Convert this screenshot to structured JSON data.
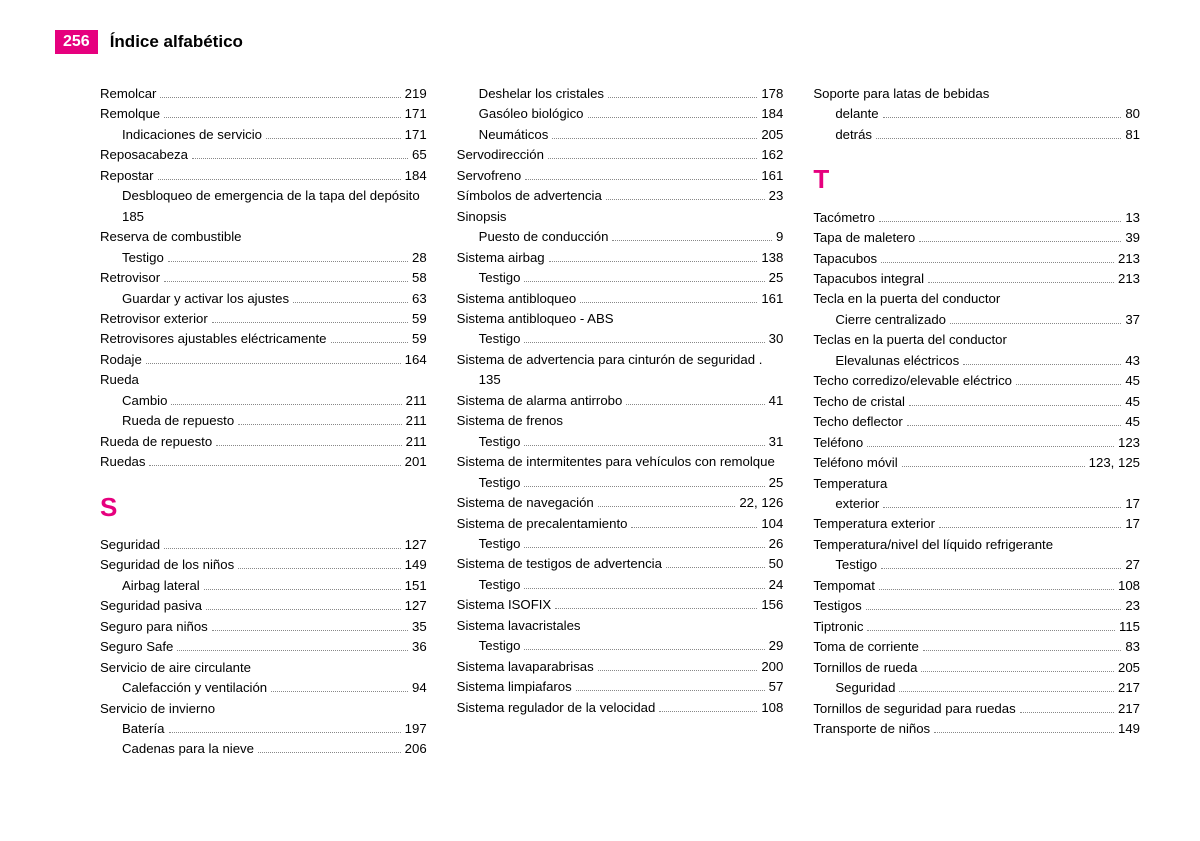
{
  "header": {
    "page_number": "256",
    "title": "Índice alfabético"
  },
  "accent_color": "#e6007e",
  "columns": [
    {
      "items": [
        {
          "t": "entry",
          "label": "Remolcar",
          "page": "219"
        },
        {
          "t": "entry",
          "label": "Remolque",
          "page": "171"
        },
        {
          "t": "sub",
          "label": "Indicaciones de servicio",
          "page": "171"
        },
        {
          "t": "entry",
          "label": "Reposacabeza",
          "page": "65"
        },
        {
          "t": "entry",
          "label": "Repostar",
          "page": "184"
        },
        {
          "t": "subtext",
          "label": "Desbloqueo de emergencia de la tapa del depósito 185"
        },
        {
          "t": "heading",
          "label": "Reserva de combustible"
        },
        {
          "t": "sub",
          "label": "Testigo",
          "page": "28"
        },
        {
          "t": "entry",
          "label": "Retrovisor",
          "page": "58"
        },
        {
          "t": "sub",
          "label": "Guardar y activar los ajustes",
          "page": "63"
        },
        {
          "t": "entry",
          "label": "Retrovisor exterior",
          "page": "59"
        },
        {
          "t": "entry",
          "label": "Retrovisores ajustables eléctricamente",
          "page": "59"
        },
        {
          "t": "entry",
          "label": "Rodaje",
          "page": "164"
        },
        {
          "t": "heading",
          "label": "Rueda"
        },
        {
          "t": "sub",
          "label": "Cambio",
          "page": "211"
        },
        {
          "t": "sub",
          "label": "Rueda de repuesto",
          "page": "211"
        },
        {
          "t": "entry",
          "label": "Rueda de repuesto",
          "page": "211"
        },
        {
          "t": "entry",
          "label": "Ruedas",
          "page": "201"
        },
        {
          "t": "letter",
          "label": "S"
        },
        {
          "t": "entry",
          "label": "Seguridad",
          "page": "127"
        },
        {
          "t": "entry",
          "label": "Seguridad de los niños",
          "page": "149"
        },
        {
          "t": "sub",
          "label": "Airbag lateral",
          "page": "151"
        },
        {
          "t": "entry",
          "label": "Seguridad pasiva",
          "page": "127"
        },
        {
          "t": "entry",
          "label": "Seguro para niños",
          "page": "35"
        },
        {
          "t": "entry",
          "label": "Seguro Safe",
          "page": "36"
        },
        {
          "t": "heading",
          "label": "Servicio de aire circulante"
        },
        {
          "t": "sub",
          "label": "Calefacción y ventilación",
          "page": "94"
        },
        {
          "t": "heading",
          "label": "Servicio de invierno"
        },
        {
          "t": "sub",
          "label": "Batería",
          "page": "197"
        },
        {
          "t": "sub",
          "label": "Cadenas para la nieve",
          "page": "206"
        }
      ]
    },
    {
      "items": [
        {
          "t": "sub",
          "label": "Deshelar los cristales",
          "page": "178"
        },
        {
          "t": "sub",
          "label": "Gasóleo biológico",
          "page": "184"
        },
        {
          "t": "sub",
          "label": "Neumáticos",
          "page": "205"
        },
        {
          "t": "entry",
          "label": "Servodirección",
          "page": "162"
        },
        {
          "t": "entry",
          "label": "Servofreno",
          "page": "161"
        },
        {
          "t": "entry",
          "label": "Símbolos de advertencia",
          "page": "23"
        },
        {
          "t": "heading",
          "label": "Sinopsis"
        },
        {
          "t": "sub",
          "label": "Puesto de conducción",
          "page": "9"
        },
        {
          "t": "entry",
          "label": "Sistema airbag",
          "page": "138"
        },
        {
          "t": "sub",
          "label": "Testigo",
          "page": "25"
        },
        {
          "t": "entry",
          "label": "Sistema antibloqueo",
          "page": "161"
        },
        {
          "t": "heading",
          "label": "Sistema antibloqueo - ABS"
        },
        {
          "t": "sub",
          "label": "Testigo",
          "page": "30"
        },
        {
          "t": "wraptext",
          "label": "Sistema de advertencia para cinturón de seguridad  .",
          "cont": "135"
        },
        {
          "t": "entry",
          "label": "Sistema de alarma antirrobo",
          "page": "41"
        },
        {
          "t": "heading",
          "label": "Sistema de frenos"
        },
        {
          "t": "sub",
          "label": "Testigo",
          "page": "31"
        },
        {
          "t": "heading",
          "label": "Sistema de intermitentes para vehículos con remolque"
        },
        {
          "t": "sub",
          "label": "Testigo",
          "page": "25"
        },
        {
          "t": "entry",
          "label": "Sistema de navegación",
          "page": "22, 126"
        },
        {
          "t": "entry",
          "label": "Sistema de precalentamiento",
          "page": "104"
        },
        {
          "t": "sub",
          "label": "Testigo",
          "page": "26"
        },
        {
          "t": "entry",
          "label": "Sistema de testigos de advertencia",
          "page": "50"
        },
        {
          "t": "sub",
          "label": "Testigo",
          "page": "24"
        },
        {
          "t": "entry",
          "label": "Sistema ISOFIX",
          "page": "156"
        },
        {
          "t": "heading",
          "label": "Sistema lavacristales"
        },
        {
          "t": "sub",
          "label": "Testigo",
          "page": "29"
        },
        {
          "t": "entry",
          "label": "Sistema lavaparabrisas",
          "page": "200"
        },
        {
          "t": "entry",
          "label": "Sistema limpiafaros",
          "page": "57"
        },
        {
          "t": "entry",
          "label": "Sistema regulador de la velocidad",
          "page": "108"
        }
      ]
    },
    {
      "items": [
        {
          "t": "heading",
          "label": "Soporte para latas de bebidas"
        },
        {
          "t": "sub",
          "label": "delante",
          "page": "80"
        },
        {
          "t": "sub",
          "label": "detrás",
          "page": "81"
        },
        {
          "t": "letter",
          "label": "T"
        },
        {
          "t": "entry",
          "label": "Tacómetro",
          "page": "13"
        },
        {
          "t": "entry",
          "label": "Tapa de maletero",
          "page": "39"
        },
        {
          "t": "entry",
          "label": "Tapacubos",
          "page": "213"
        },
        {
          "t": "entry",
          "label": "Tapacubos integral",
          "page": "213"
        },
        {
          "t": "heading",
          "label": "Tecla en la puerta del conductor"
        },
        {
          "t": "sub",
          "label": "Cierre centralizado",
          "page": "37"
        },
        {
          "t": "heading",
          "label": "Teclas en la puerta del conductor"
        },
        {
          "t": "sub",
          "label": "Elevalunas eléctricos",
          "page": "43"
        },
        {
          "t": "entry",
          "label": "Techo corredizo/elevable eléctrico",
          "page": "45"
        },
        {
          "t": "entry",
          "label": "Techo de cristal",
          "page": "45"
        },
        {
          "t": "entry",
          "label": "Techo deflector",
          "page": "45"
        },
        {
          "t": "entry",
          "label": "Teléfono",
          "page": "123"
        },
        {
          "t": "entry",
          "label": "Teléfono móvil",
          "page": "123, 125"
        },
        {
          "t": "heading",
          "label": "Temperatura"
        },
        {
          "t": "sub",
          "label": "exterior",
          "page": "17"
        },
        {
          "t": "entry",
          "label": "Temperatura exterior",
          "page": "17"
        },
        {
          "t": "heading",
          "label": "Temperatura/nivel del líquido refrigerante"
        },
        {
          "t": "sub",
          "label": "Testigo",
          "page": "27"
        },
        {
          "t": "entry",
          "label": "Tempomat",
          "page": "108"
        },
        {
          "t": "entry",
          "label": "Testigos",
          "page": "23"
        },
        {
          "t": "entry",
          "label": "Tiptronic",
          "page": "115"
        },
        {
          "t": "entry",
          "label": "Toma de corriente",
          "page": "83"
        },
        {
          "t": "entry",
          "label": "Tornillos de rueda",
          "page": "205"
        },
        {
          "t": "sub",
          "label": "Seguridad",
          "page": "217"
        },
        {
          "t": "entry",
          "label": "Tornillos de seguridad para ruedas",
          "page": "217"
        },
        {
          "t": "entry",
          "label": "Transporte de niños",
          "page": "149"
        }
      ]
    }
  ]
}
